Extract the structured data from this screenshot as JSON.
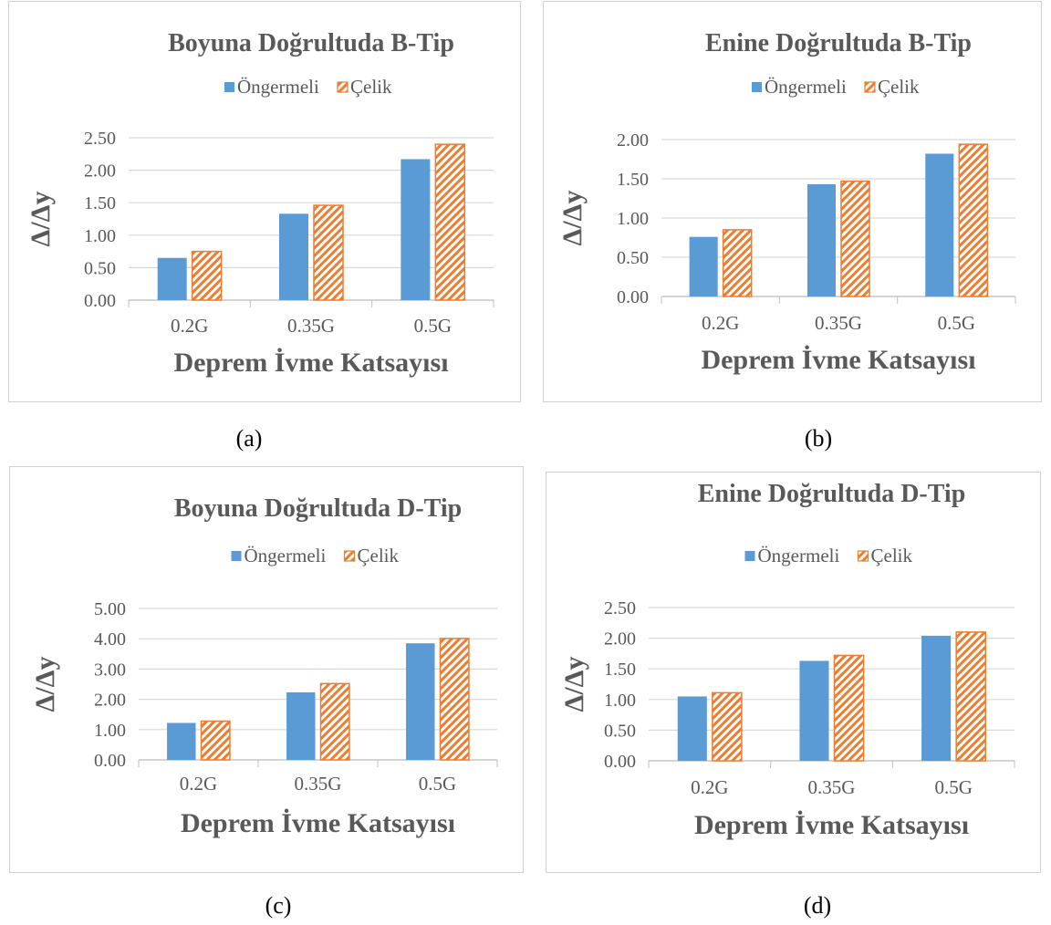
{
  "colors": {
    "ongermeli": "#5b9bd5",
    "celik": "#ed7d31",
    "grid": "#d9d9d9",
    "text": "#595959"
  },
  "captions": [
    "(a)",
    "(b)",
    "(c)",
    "(d)"
  ],
  "chart_data": [
    {
      "type": "bar",
      "title": "Boyuna Doğrultuda B-Tip",
      "xlabel": "Deprem İvme Katsayısı",
      "ylabel": "Δ/Δy",
      "categories": [
        "0.2G",
        "0.35G",
        "0.5G"
      ],
      "series": [
        {
          "name": "Öngermeli",
          "values": [
            0.65,
            1.33,
            2.17
          ]
        },
        {
          "name": "Çelik",
          "values": [
            0.75,
            1.46,
            2.4
          ]
        }
      ],
      "ylim": [
        0,
        2.5
      ],
      "yticks": [
        "0.00",
        "0.50",
        "1.00",
        "1.50",
        "2.00",
        "2.50"
      ],
      "grid": true,
      "legend": "top"
    },
    {
      "type": "bar",
      "title": "Enine Doğrultuda B-Tip",
      "xlabel": "Deprem İvme Katsayısı",
      "ylabel": "Δ/Δy",
      "categories": [
        "0.2G",
        "0.35G",
        "0.5G"
      ],
      "series": [
        {
          "name": "Öngermeli",
          "values": [
            0.76,
            1.43,
            1.82
          ]
        },
        {
          "name": "Çelik",
          "values": [
            0.85,
            1.47,
            1.94
          ]
        }
      ],
      "ylim": [
        0,
        2.0
      ],
      "yticks": [
        "0.00",
        "0.50",
        "1.00",
        "1.50",
        "2.00"
      ],
      "grid": true,
      "legend": "top"
    },
    {
      "type": "bar",
      "title": "Boyuna Doğrultuda D-Tip",
      "xlabel": "Deprem İvme Katsayısı",
      "ylabel": "Δ/Δy",
      "categories": [
        "0.2G",
        "0.35G",
        "0.5G"
      ],
      "series": [
        {
          "name": "Öngermeli",
          "values": [
            1.22,
            2.23,
            3.85
          ]
        },
        {
          "name": "Çelik",
          "values": [
            1.28,
            2.52,
            4.01
          ]
        }
      ],
      "ylim": [
        0,
        5.0
      ],
      "yticks": [
        "0.00",
        "1.00",
        "2.00",
        "3.00",
        "4.00",
        "5.00"
      ],
      "grid": true,
      "legend": "top"
    },
    {
      "type": "bar",
      "title": "Enine Doğrultuda D-Tip",
      "xlabel": "Deprem İvme Katsayısı",
      "ylabel": "Δ/Δy",
      "categories": [
        "0.2G",
        "0.35G",
        "0.5G"
      ],
      "series": [
        {
          "name": "Öngermeli",
          "values": [
            1.05,
            1.63,
            2.04
          ]
        },
        {
          "name": "Çelik",
          "values": [
            1.11,
            1.72,
            2.1
          ]
        }
      ],
      "ylim": [
        0,
        2.5
      ],
      "yticks": [
        "0.00",
        "0.50",
        "1.00",
        "1.50",
        "2.00",
        "2.50"
      ],
      "grid": true,
      "legend": "top"
    }
  ]
}
